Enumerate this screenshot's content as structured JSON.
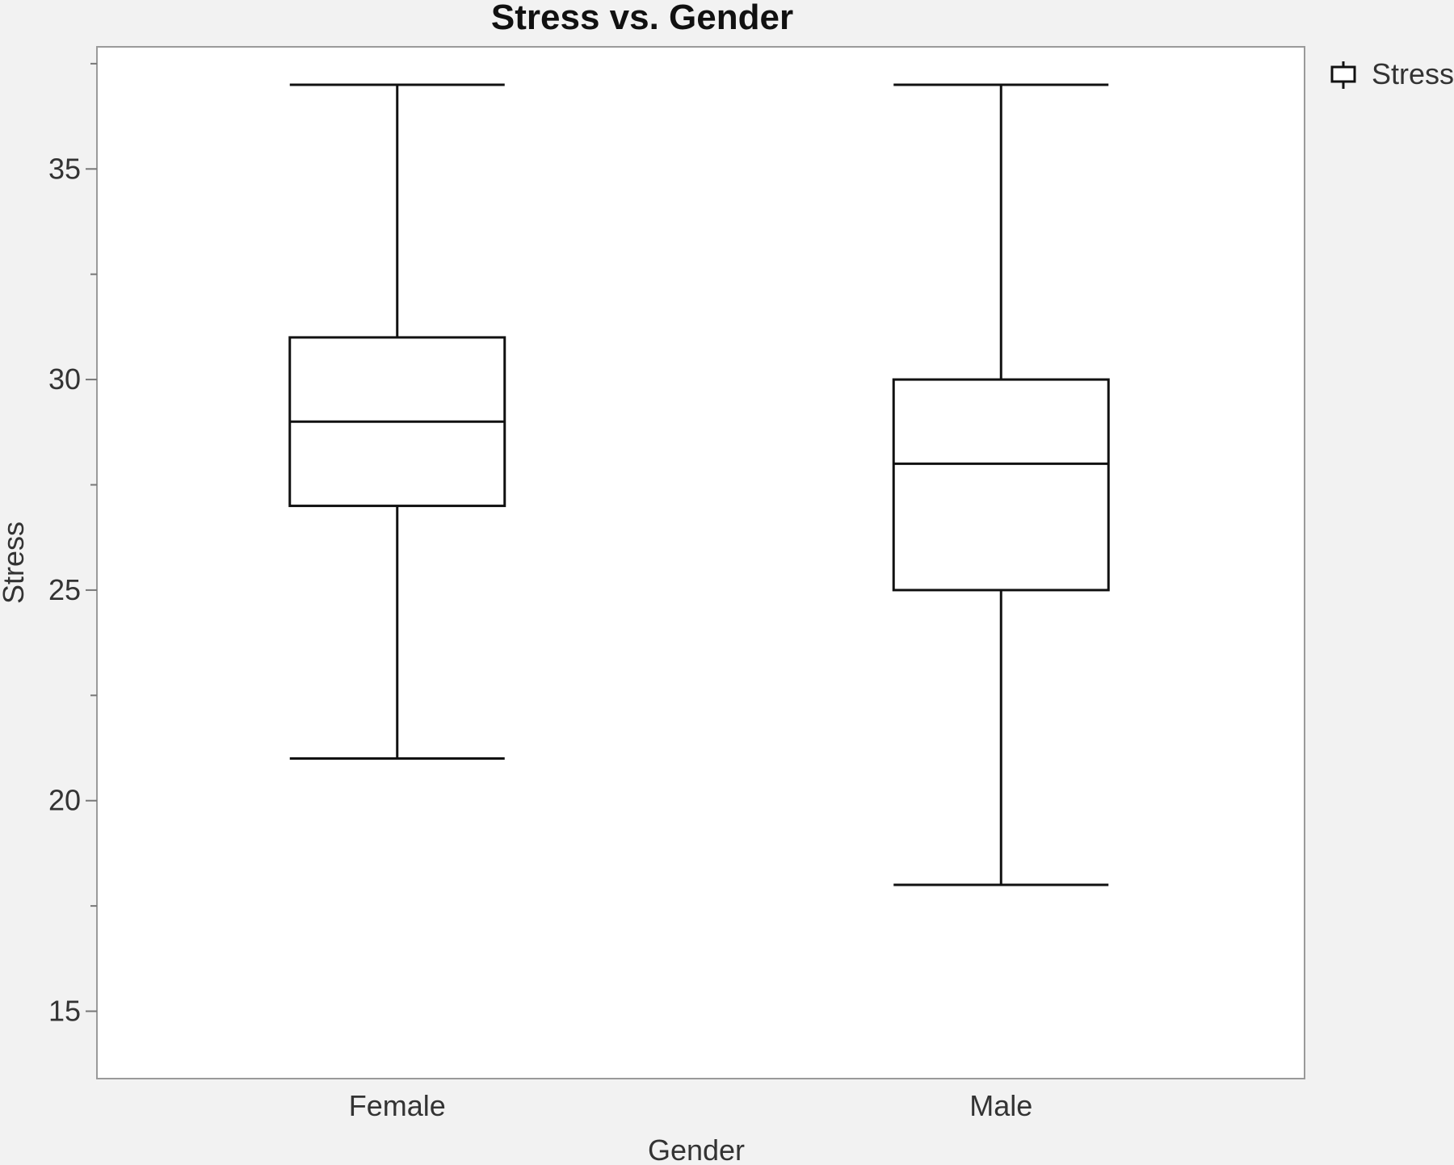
{
  "chart_data": {
    "type": "boxplot",
    "title": "Stress vs. Gender",
    "xlabel": "Gender",
    "ylabel": "Stress",
    "ylim": [
      13.4,
      37.9
    ],
    "yticks": [
      15,
      20,
      25,
      30,
      35
    ],
    "yminor_step": 2.5,
    "categories": [
      "Female",
      "Male"
    ],
    "series": [
      {
        "name": "Stress",
        "boxes": [
          {
            "category": "Female",
            "min": 21,
            "q1": 27,
            "median": 29,
            "q3": 31,
            "max": 37
          },
          {
            "category": "Male",
            "min": 18,
            "q1": 25,
            "median": 28,
            "q3": 30,
            "max": 37
          }
        ]
      }
    ],
    "legend": {
      "position": "top-right",
      "entries": [
        "Stress"
      ]
    },
    "grid": false,
    "colors": {
      "line": "#111111",
      "frame": "#9a9a9a",
      "plot_bg": "#ffffff",
      "page_bg": "#f2f2f2"
    }
  }
}
